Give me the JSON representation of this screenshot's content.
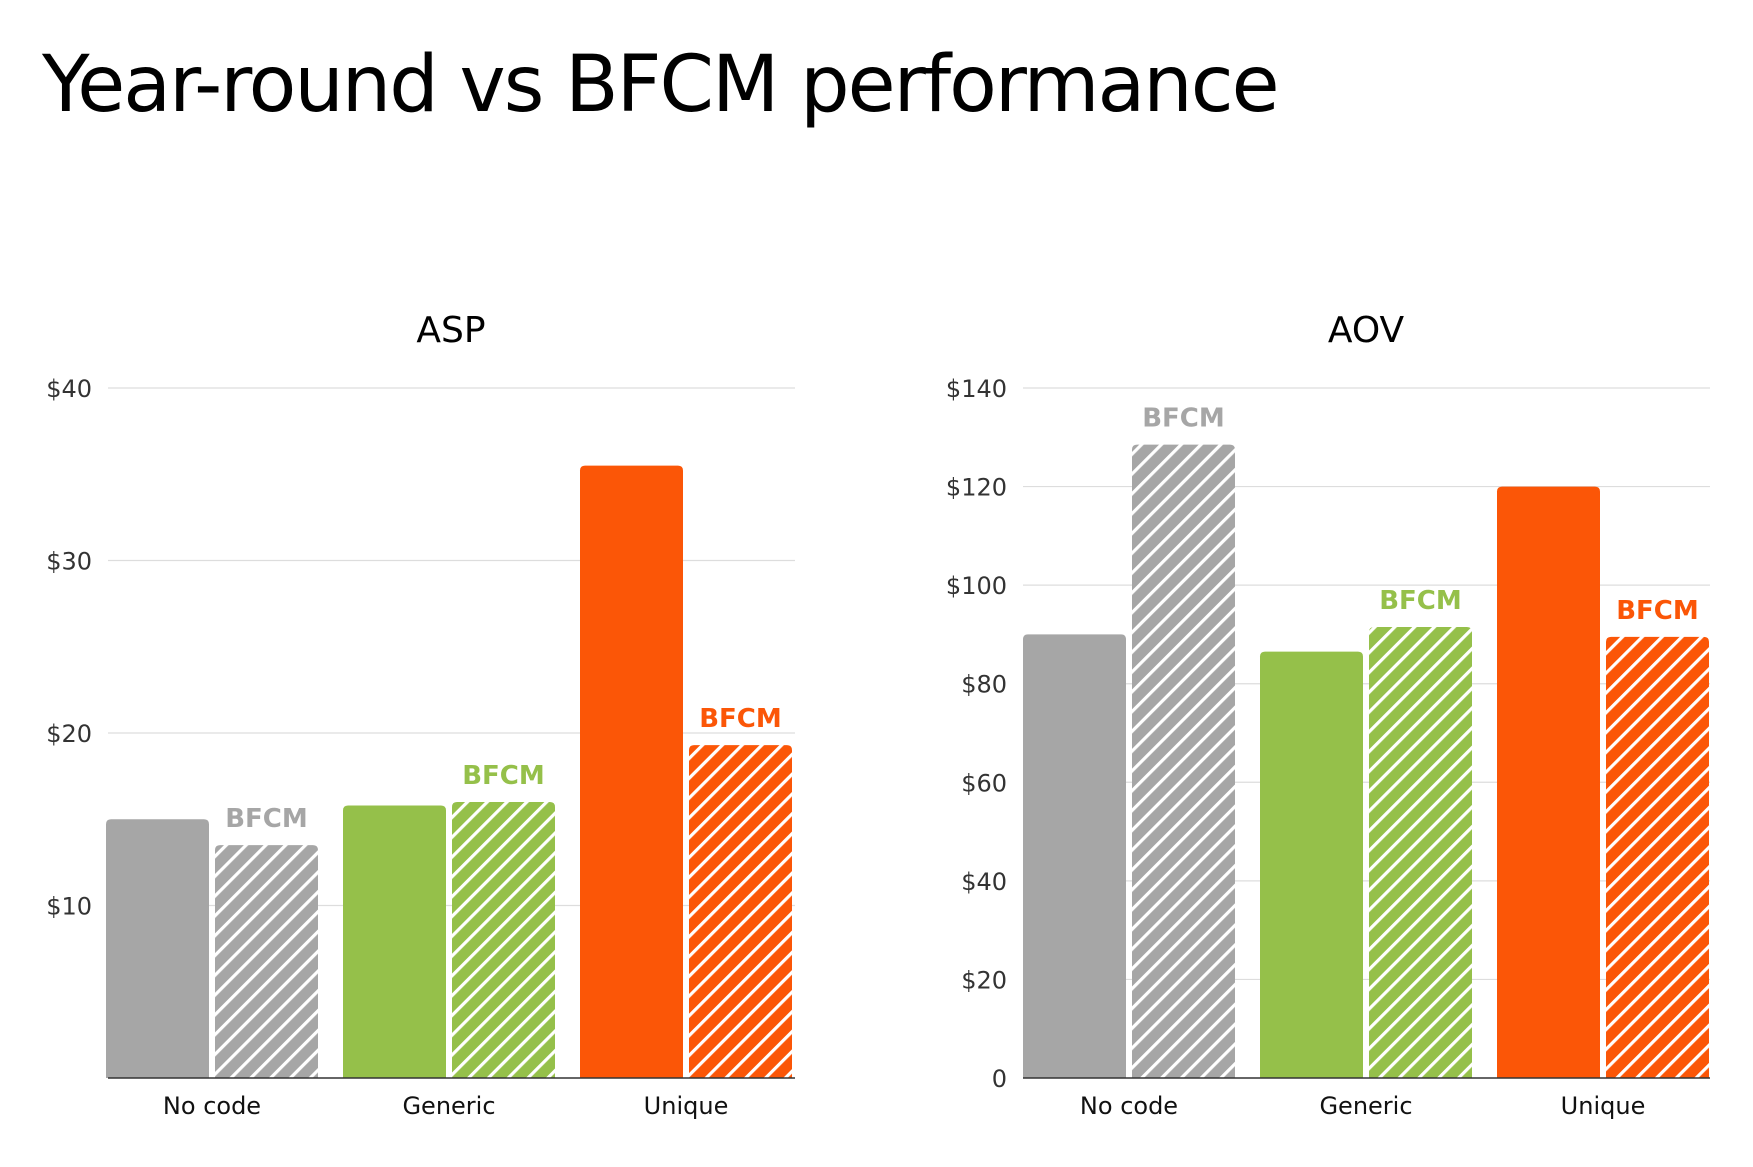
{
  "page": {
    "title": "Year-round vs BFCM performance"
  },
  "colors": {
    "no_code": "#a6a6a6",
    "generic": "#95c04a",
    "unique": "#fb5607",
    "grid": "#dddddd",
    "axis": "#333333",
    "background": "#ffffff"
  },
  "chart_data": [
    {
      "type": "bar",
      "title": "ASP",
      "categories": [
        "No code",
        "Generic",
        "Unique"
      ],
      "series": [
        {
          "name": "",
          "values": [
            15,
            15.8,
            35.5
          ],
          "pattern": "solid"
        },
        {
          "name": "BFCM",
          "values": [
            13.5,
            16,
            19.3
          ],
          "pattern": "hatched"
        }
      ],
      "data_labels": [
        "BFCM",
        "BFCM",
        "BFCM"
      ],
      "ylim": [
        0,
        40
      ],
      "yticks": [
        10,
        20,
        30,
        40
      ],
      "ytick_labels": [
        "$10",
        "$20",
        "$30",
        "$40"
      ],
      "grid": true,
      "xlabel": "",
      "ylabel": ""
    },
    {
      "type": "bar",
      "title": "AOV",
      "categories": [
        "No code",
        "Generic",
        "Unique"
      ],
      "series": [
        {
          "name": "",
          "values": [
            90,
            86.5,
            120
          ],
          "pattern": "solid"
        },
        {
          "name": "BFCM",
          "values": [
            128.5,
            91.5,
            89.5
          ],
          "pattern": "hatched"
        }
      ],
      "data_labels": [
        "BFCM",
        "BFCM",
        "BFCM"
      ],
      "ylim": [
        0,
        140
      ],
      "yticks": [
        0,
        20,
        40,
        60,
        80,
        100,
        120,
        140
      ],
      "ytick_labels": [
        "0",
        "$20",
        "$40",
        "$60",
        "$80",
        "$100",
        "$120",
        "$140"
      ],
      "grid": true,
      "xlabel": "",
      "ylabel": ""
    }
  ]
}
